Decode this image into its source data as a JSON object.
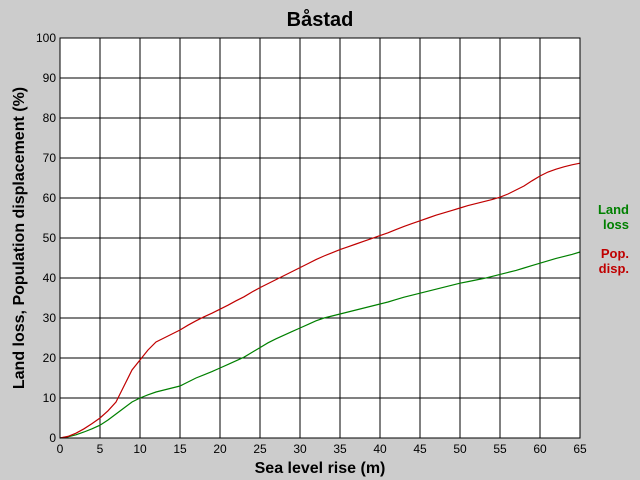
{
  "chart_data": {
    "type": "line",
    "title": "Båstad",
    "xlabel": "Sea level rise (m)",
    "ylabel": "Land loss, Population displacement (%)",
    "xlim": [
      0,
      65
    ],
    "ylim": [
      0,
      100
    ],
    "xticks": [
      0,
      5,
      10,
      15,
      20,
      25,
      30,
      35,
      40,
      45,
      50,
      55,
      60,
      65
    ],
    "yticks": [
      0,
      10,
      20,
      30,
      40,
      50,
      60,
      70,
      80,
      90,
      100
    ],
    "grid": true,
    "legend_position": "right",
    "series": [
      {
        "name_lines": [
          "Land",
          "loss"
        ],
        "color": "#008000",
        "x": [
          0,
          1,
          2,
          3,
          4,
          5,
          6,
          7,
          8,
          9,
          10,
          11,
          12,
          13,
          14,
          15,
          16,
          17,
          18,
          19,
          20,
          21,
          22,
          23,
          24,
          25,
          26,
          27,
          28,
          29,
          30,
          31,
          32,
          33,
          34,
          35,
          36,
          37,
          38,
          39,
          40,
          41,
          42,
          43,
          44,
          45,
          46,
          47,
          48,
          49,
          50,
          51,
          52,
          53,
          54,
          55,
          56,
          57,
          58,
          59,
          60,
          61,
          62,
          63,
          64,
          65
        ],
        "values": [
          0,
          0.3,
          0.8,
          1.5,
          2.3,
          3.2,
          4.5,
          6,
          7.5,
          9,
          10,
          10.8,
          11.5,
          12,
          12.5,
          13,
          14,
          15,
          15.8,
          16.6,
          17.5,
          18.4,
          19.3,
          20.2,
          21.4,
          22.6,
          23.8,
          24.8,
          25.7,
          26.6,
          27.5,
          28.4,
          29.3,
          30,
          30.5,
          31,
          31.5,
          32,
          32.5,
          33,
          33.5,
          34,
          34.6,
          35.2,
          35.7,
          36.2,
          36.7,
          37.2,
          37.7,
          38.2,
          38.7,
          39.1,
          39.5,
          39.9,
          40.4,
          40.9,
          41.4,
          41.9,
          42.5,
          43.1,
          43.7,
          44.3,
          44.9,
          45.4,
          45.9,
          46.5
        ]
      },
      {
        "name_lines": [
          "Pop.",
          "disp."
        ],
        "color": "#c00000",
        "x": [
          0,
          1,
          2,
          3,
          4,
          5,
          6,
          7,
          8,
          9,
          10,
          11,
          12,
          13,
          14,
          15,
          16,
          17,
          18,
          19,
          20,
          21,
          22,
          23,
          24,
          25,
          26,
          27,
          28,
          29,
          30,
          31,
          32,
          33,
          34,
          35,
          36,
          37,
          38,
          39,
          40,
          41,
          42,
          43,
          44,
          45,
          46,
          47,
          48,
          49,
          50,
          51,
          52,
          53,
          54,
          55,
          56,
          57,
          58,
          59,
          60,
          61,
          62,
          63,
          64,
          65
        ],
        "values": [
          0,
          0.4,
          1.2,
          2.3,
          3.6,
          5,
          6.8,
          9,
          13,
          17,
          19.5,
          22,
          24,
          25,
          26,
          27,
          28.2,
          29.3,
          30.3,
          31.2,
          32.2,
          33.2,
          34.3,
          35.3,
          36.5,
          37.6,
          38.6,
          39.6,
          40.6,
          41.6,
          42.6,
          43.6,
          44.6,
          45.5,
          46.3,
          47.1,
          47.8,
          48.5,
          49.2,
          49.9,
          50.6,
          51.3,
          52.1,
          52.9,
          53.6,
          54.3,
          55,
          55.7,
          56.3,
          56.9,
          57.5,
          58.1,
          58.6,
          59.1,
          59.6,
          60.2,
          61,
          62,
          63,
          64.3,
          65.5,
          66.5,
          67.2,
          67.8,
          68.3,
          68.7
        ]
      }
    ]
  }
}
